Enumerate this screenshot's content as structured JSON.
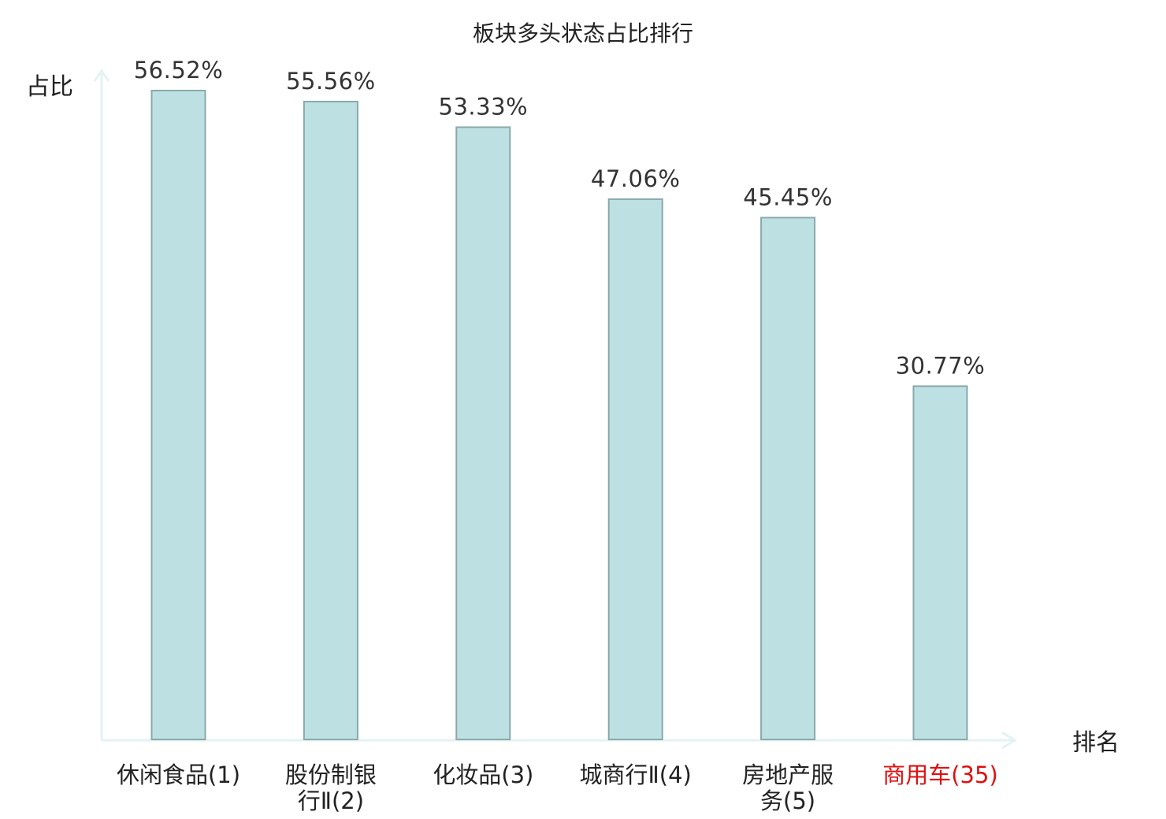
{
  "chart_data": {
    "type": "bar",
    "title": "板块多头状态占比排行",
    "ylabel": "占比",
    "xlabel": "排名",
    "categories": [
      "休闲食品(1)",
      "股份制银行Ⅱ(2)",
      "化妆品(3)",
      "城商行Ⅱ(4)",
      "房地产服务(5)",
      "商用车(35)"
    ],
    "category_lines": [
      [
        "休闲食品(1)"
      ],
      [
        "股份制银",
        "行Ⅱ(2)"
      ],
      [
        "化妆品(3)"
      ],
      [
        "城商行Ⅱ(4)"
      ],
      [
        "房地产服",
        "务(5)"
      ],
      [
        "商用车(35)"
      ]
    ],
    "values": [
      56.52,
      55.56,
      53.33,
      47.06,
      45.45,
      30.77
    ],
    "value_labels": [
      "56.52%",
      "55.56%",
      "53.33%",
      "47.06%",
      "45.45%",
      "30.77%"
    ],
    "highlight_index": 5,
    "ylim": [
      0,
      57
    ],
    "grid": false,
    "colors": {
      "bar_fill": "#bde1e3",
      "bar_stroke": "#8aa8a9",
      "axis": "#e3f3f2",
      "text": "#222222",
      "highlight_text": "#e01010"
    }
  }
}
